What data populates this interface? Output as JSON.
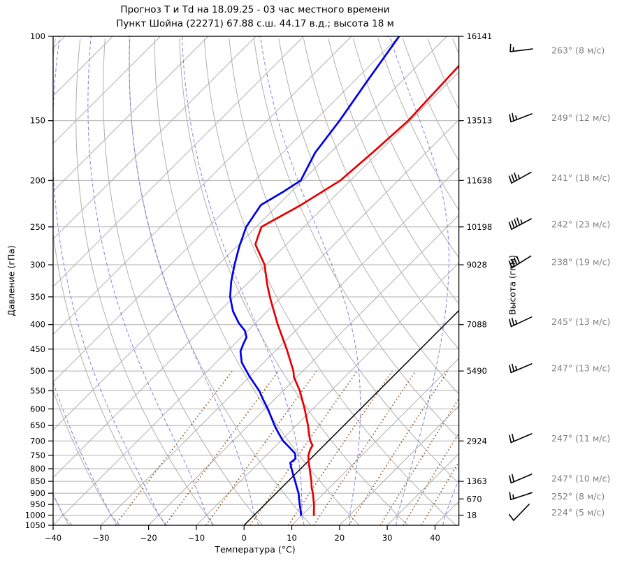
{
  "title": {
    "line1": "Прогноз Т и Td на 18.09.25 - 03 час местного времени",
    "line2": "Пункт Шойна (22271) 67.88 с.ш. 44.17 в.д.; высота 18 м"
  },
  "chart_data": {
    "type": "line",
    "variant": "skew-t-log-p",
    "xlabel": "Температура (°C)",
    "ylabel_left": "Давление (гПа)",
    "ylabel_right": "Высота (гпм)",
    "xlim": [
      -40,
      45
    ],
    "plim": [
      100,
      1050
    ],
    "skew_deg": 45,
    "x_ticks": [
      -40,
      -30,
      -20,
      -10,
      0,
      10,
      20,
      30,
      40
    ],
    "x_tick_labels": [
      "−40",
      "−30",
      "−20",
      "−10",
      "0",
      "10",
      "20",
      "30",
      "40"
    ],
    "p_ticks": [
      100,
      150,
      200,
      250,
      300,
      350,
      400,
      450,
      500,
      550,
      600,
      650,
      700,
      750,
      800,
      850,
      900,
      950,
      1000,
      1050
    ],
    "isotherms": {
      "start": -140,
      "end": 40,
      "step": 10,
      "highlight": 0
    },
    "dry_adiabats": {
      "start": -60,
      "end": 200,
      "step": 10
    },
    "moist_adiabats": {
      "start": -60,
      "end": 40,
      "step": 10
    },
    "mixing_ratio_lines": {
      "values": [
        0.4,
        1,
        2,
        4,
        7,
        10,
        16,
        24,
        32,
        40
      ],
      "p_bottom": 1050,
      "p_top": 500
    },
    "series": [
      {
        "name": "temperature",
        "label": "T",
        "color": "#e60000",
        "points": [
          [
            115,
            -51.3
          ],
          [
            150,
            -50.4
          ],
          [
            175,
            -51.2
          ],
          [
            200,
            -52.1
          ],
          [
            225,
            -55.2
          ],
          [
            250,
            -58.9
          ],
          [
            262,
            -57.6
          ],
          [
            272,
            -56.5
          ],
          [
            300,
            -50.3
          ],
          [
            330,
            -45.6
          ],
          [
            355,
            -41.7
          ],
          [
            400,
            -35.0
          ],
          [
            450,
            -28.0
          ],
          [
            500,
            -22.0
          ],
          [
            515,
            -20.6
          ],
          [
            550,
            -16.5
          ],
          [
            600,
            -11.7
          ],
          [
            650,
            -7.5
          ],
          [
            680,
            -5.3
          ],
          [
            700,
            -3.8
          ],
          [
            715,
            -2.4
          ],
          [
            730,
            -2.0
          ],
          [
            750,
            -1.2
          ],
          [
            775,
            0.3
          ],
          [
            800,
            1.9
          ],
          [
            825,
            3.4
          ],
          [
            850,
            4.9
          ],
          [
            875,
            6.2
          ],
          [
            900,
            7.7
          ],
          [
            925,
            9.0
          ],
          [
            950,
            10.3
          ],
          [
            975,
            11.4
          ],
          [
            1000,
            12.5
          ]
        ]
      },
      {
        "name": "dewpoint",
        "label": "Td",
        "color": "#0000e6",
        "points": [
          [
            100,
            -70.0
          ],
          [
            125,
            -67.2
          ],
          [
            150,
            -64.8
          ],
          [
            175,
            -63.2
          ],
          [
            200,
            -60.4
          ],
          [
            212,
            -61.8
          ],
          [
            225,
            -63.6
          ],
          [
            250,
            -62.1
          ],
          [
            275,
            -59.4
          ],
          [
            300,
            -56.6
          ],
          [
            325,
            -53.8
          ],
          [
            350,
            -50.8
          ],
          [
            375,
            -47.2
          ],
          [
            397,
            -43.5
          ],
          [
            412,
            -40.6
          ],
          [
            425,
            -38.9
          ],
          [
            440,
            -38.1
          ],
          [
            455,
            -37.2
          ],
          [
            480,
            -34.6
          ],
          [
            513,
            -30.1
          ],
          [
            550,
            -25.0
          ],
          [
            575,
            -22.2
          ],
          [
            600,
            -19.4
          ],
          [
            625,
            -16.9
          ],
          [
            650,
            -14.5
          ],
          [
            675,
            -12.0
          ],
          [
            700,
            -9.5
          ],
          [
            718,
            -7.3
          ],
          [
            743,
            -4.4
          ],
          [
            762,
            -3.2
          ],
          [
            778,
            -3.4
          ],
          [
            800,
            -1.9
          ],
          [
            825,
            -0.2
          ],
          [
            850,
            1.5
          ],
          [
            875,
            3.1
          ],
          [
            900,
            4.7
          ],
          [
            925,
            6.0
          ],
          [
            950,
            7.3
          ],
          [
            975,
            8.6
          ],
          [
            1000,
            9.8
          ]
        ]
      }
    ],
    "height_labels": [
      {
        "p": 100,
        "label": "16141"
      },
      {
        "p": 150,
        "label": "13513"
      },
      {
        "p": 200,
        "label": "11638"
      },
      {
        "p": 250,
        "label": "10198"
      },
      {
        "p": 300,
        "label": "9028"
      },
      {
        "p": 400,
        "label": "7088"
      },
      {
        "p": 500,
        "label": "5490"
      },
      {
        "p": 700,
        "label": "2924"
      },
      {
        "p": 850,
        "label": "1363"
      },
      {
        "p": 925,
        "label": "670"
      },
      {
        "p": 1000,
        "label": "18"
      }
    ],
    "winds": [
      {
        "p": 100,
        "dir": 263,
        "speed": 8,
        "label": "263° (8 м/с)"
      },
      {
        "p": 150,
        "dir": 249,
        "speed": 12,
        "label": "249° (12 м/с)"
      },
      {
        "p": 200,
        "dir": 241,
        "speed": 18,
        "label": "241° (18 м/с)"
      },
      {
        "p": 250,
        "dir": 242,
        "speed": 23,
        "label": "242° (23 м/с)"
      },
      {
        "p": 300,
        "dir": 238,
        "speed": 19,
        "label": "238° (19 м/с)"
      },
      {
        "p": 400,
        "dir": 245,
        "speed": 13,
        "label": "245° (13 м/с)"
      },
      {
        "p": 500,
        "dir": 247,
        "speed": 13,
        "label": "247° (13 м/с)"
      },
      {
        "p": 700,
        "dir": 247,
        "speed": 11,
        "label": "247° (11 м/с)"
      },
      {
        "p": 850,
        "dir": 247,
        "speed": 10,
        "label": "247° (10 м/с)"
      },
      {
        "p": 925,
        "dir": 252,
        "speed": 8,
        "label": "252° (8 м/с)"
      },
      {
        "p": 1000,
        "dir": 224,
        "speed": 5,
        "label": "224° (5 м/с)"
      }
    ],
    "colors": {
      "grid_gray": "#b0b0b0",
      "moist_adiabat": "#8080e0",
      "mixing_ratio": "#96602e",
      "zero_isotherm": "#000000",
      "axis": "#000000",
      "wind_text": "#808080"
    }
  }
}
